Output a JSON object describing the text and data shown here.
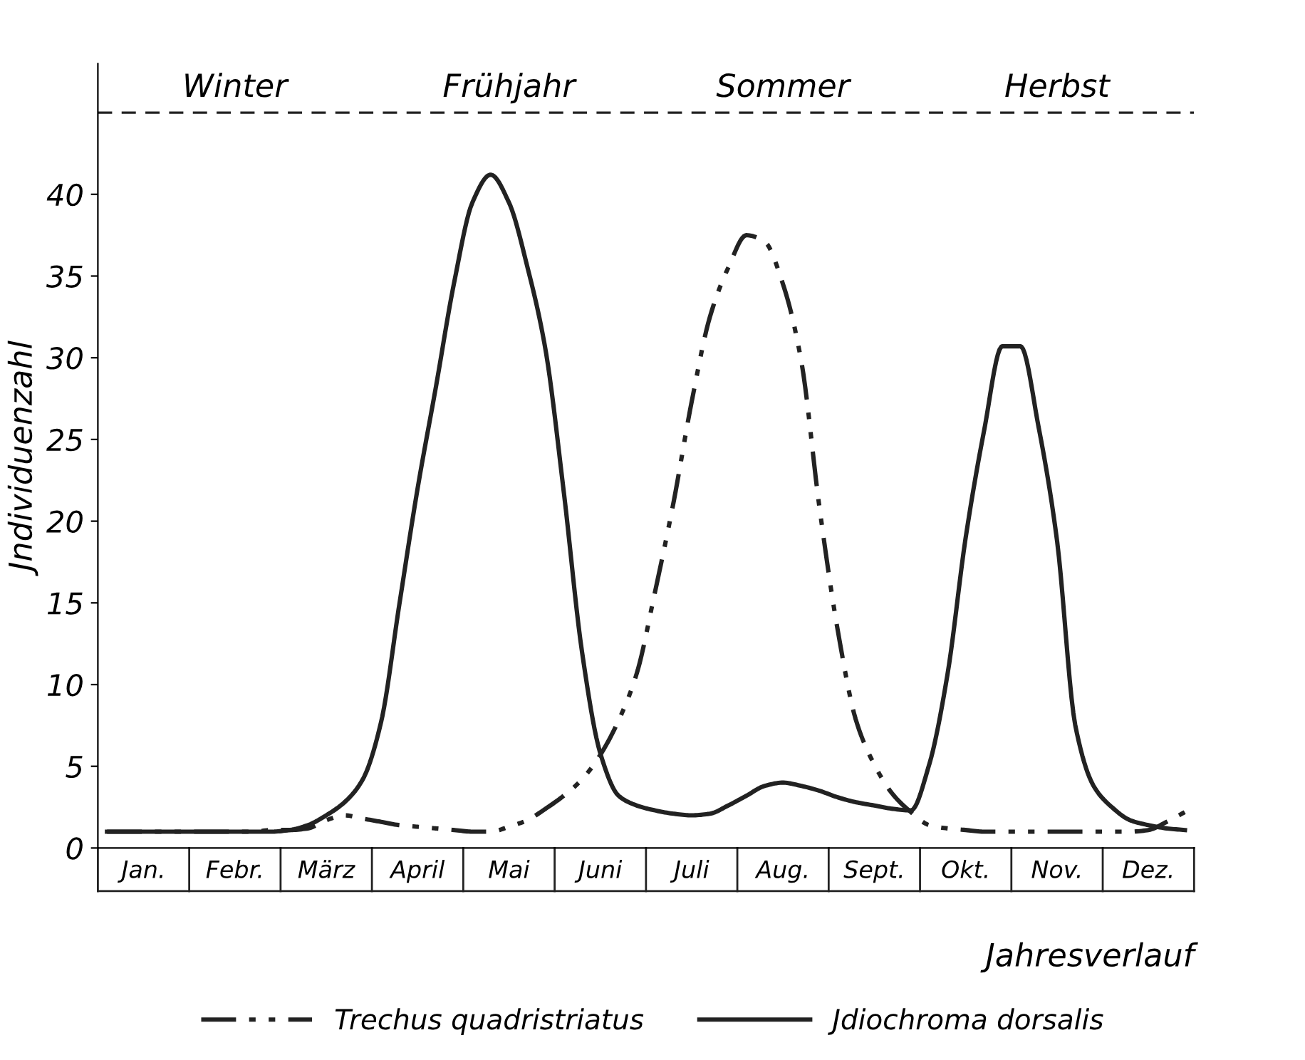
{
  "chart_data": {
    "type": "line",
    "xlabel": "Jahresverlauf",
    "ylabel": "Jndividuenzahl",
    "categories": [
      null,
      null,
      "Jan.",
      null,
      null,
      null,
      null,
      "Febr.",
      null,
      null,
      null,
      null,
      "März",
      null,
      null,
      null,
      null,
      "April",
      null,
      null,
      null,
      null,
      "Mai",
      null,
      null,
      null,
      null,
      "Juni",
      null,
      null,
      null,
      null,
      "Juli",
      null,
      null,
      null,
      null,
      "Aug.",
      null,
      null,
      null,
      null,
      "Sept.",
      null,
      null,
      null,
      null,
      "Okt.",
      null,
      null,
      null,
      null,
      "Nov.",
      null,
      null,
      null,
      null,
      "Dez.",
      null,
      null
    ],
    "ylim": [
      0,
      48
    ],
    "yticks": [
      0,
      5,
      10,
      15,
      20,
      25,
      30,
      35,
      40
    ],
    "series": [
      {
        "name": "Trechus quadristriatus",
        "color": "#222222",
        "line_style": "dashdot",
        "values": [
          1.0,
          1.0,
          1.0,
          1.0,
          1.0,
          1.0,
          1.0,
          1.0,
          1.0,
          1.1,
          1.1,
          1.2,
          1.7,
          2.0,
          1.8,
          1.6,
          1.4,
          1.3,
          1.2,
          1.1,
          1.0,
          1.0,
          1.3,
          1.7,
          2.4,
          3.2,
          4.2,
          5.7,
          7.8,
          10.7,
          15.7,
          21.1,
          27.3,
          32.5,
          35.5,
          37.5,
          37.1,
          34.5,
          29.8,
          20.8,
          13.3,
          7.8,
          5.1,
          3.3,
          2.2,
          1.4,
          1.2,
          1.1,
          1.0,
          1.0,
          1.0,
          1.0,
          1.0,
          1.0,
          1.0,
          1.0,
          1.0,
          1.1,
          1.6,
          2.2
        ]
      },
      {
        "name": "Jdiochroma dorsalis",
        "color": "#222222",
        "line_style": "solid",
        "values": [
          1.0,
          1.0,
          1.0,
          1.0,
          1.0,
          1.0,
          1.0,
          1.0,
          1.0,
          1.0,
          1.1,
          1.4,
          2.0,
          2.8,
          4.2,
          7.7,
          14.9,
          22.0,
          28.2,
          34.6,
          39.5,
          41.2,
          39.5,
          35.6,
          30.5,
          21.8,
          12.0,
          5.8,
          3.2,
          2.6,
          2.3,
          2.1,
          2.0,
          2.1,
          2.6,
          3.2,
          3.8,
          4.0,
          3.8,
          3.5,
          3.1,
          2.8,
          2.6,
          2.4,
          2.3,
          5.1,
          10.6,
          19.0,
          25.5,
          30.7,
          30.7,
          25.7,
          18.8,
          7.5,
          3.8,
          2.5,
          1.7,
          1.4,
          1.2,
          1.1
        ]
      }
    ],
    "ref_lines": [
      {
        "axis": "y",
        "value": 45,
        "line_style": "dashed"
      }
    ],
    "annotations": [
      "Winter",
      "Frühjahr",
      "Sommer",
      "Herbst"
    ],
    "legend": "bottom",
    "grid": false,
    "marker": "none"
  }
}
